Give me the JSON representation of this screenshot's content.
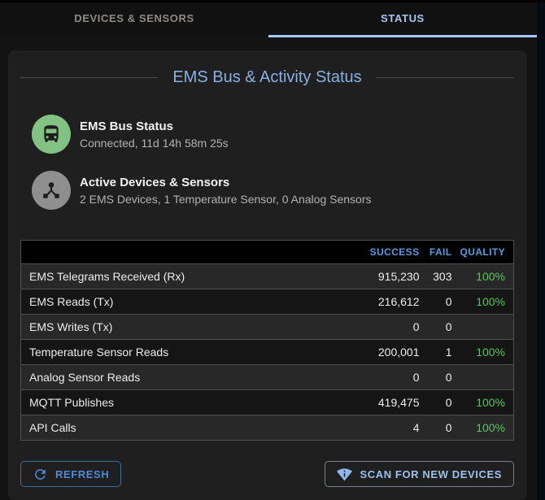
{
  "tabs": [
    {
      "label": "DEVICES & SENSORS",
      "active": false
    },
    {
      "label": "STATUS",
      "active": true
    }
  ],
  "panel": {
    "title": "EMS Bus & Activity Status",
    "status_items": [
      {
        "icon": "bus-icon",
        "icon_bg": "#82c283",
        "title": "EMS Bus Status",
        "subtitle": "Connected, 11d 14h 58m 25s"
      },
      {
        "icon": "device-hub-icon",
        "icon_bg": "#8f8f8f",
        "title": "Active Devices & Sensors",
        "subtitle": "2 EMS Devices, 1 Temperature Sensor, 0 Analog Sensors"
      }
    ],
    "table": {
      "headers": {
        "success": "SUCCESS",
        "fail": "FAIL",
        "quality": "QUALITY"
      },
      "rows": [
        {
          "label": "EMS Telegrams Received (Rx)",
          "success": "915,230",
          "fail": "303",
          "quality": "100%"
        },
        {
          "label": "EMS Reads (Tx)",
          "success": "216,612",
          "fail": "0",
          "quality": "100%"
        },
        {
          "label": "EMS Writes (Tx)",
          "success": "0",
          "fail": "0",
          "quality": ""
        },
        {
          "label": "Temperature Sensor Reads",
          "success": "200,001",
          "fail": "1",
          "quality": "100%"
        },
        {
          "label": "Analog Sensor Reads",
          "success": "0",
          "fail": "0",
          "quality": ""
        },
        {
          "label": "MQTT Publishes",
          "success": "419,475",
          "fail": "0",
          "quality": "100%"
        },
        {
          "label": "API Calls",
          "success": "4",
          "fail": "0",
          "quality": "100%"
        }
      ]
    },
    "buttons": {
      "refresh": "REFRESH",
      "scan": "SCAN FOR NEW DEVICES"
    }
  },
  "colors": {
    "tab_active": "#a7c6f2",
    "tab_underline": "#a6c8ff",
    "panel_title": "#86b1e3",
    "table_header": "#5b9be0",
    "quality_green": "#55c75c",
    "bus_icon_bg": "#82c283",
    "hub_icon_bg": "#8f8f8f",
    "refresh_blue": "#5088d8",
    "scan_blue": "#9dc2ec"
  }
}
